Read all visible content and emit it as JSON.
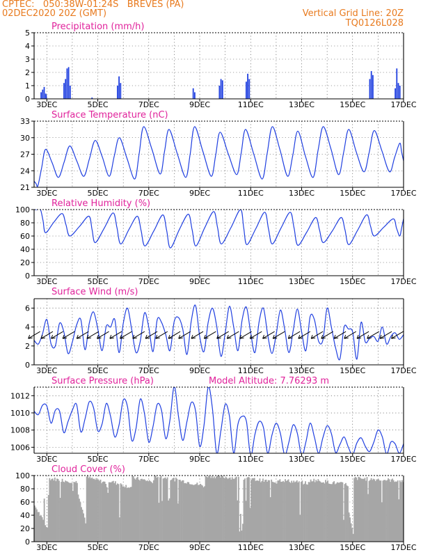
{
  "header": {
    "line1": "CPTEC:   050:38W-01:24S   BREVES (PA)",
    "line2": "02DEC2020 20Z (GMT)",
    "grid_note": "Vertical Grid Line: 20Z",
    "code": "TQ0126L028"
  },
  "colors": {
    "header": "#e87a1e",
    "panel_title": "#e0229b",
    "series": "#1f3fe0",
    "cloud": "#a6a6a6",
    "text": "#000000"
  },
  "x_ticks": [
    "3DEC",
    "5DEC",
    "7DEC",
    "9DEC",
    "11DEC",
    "13DEC",
    "15DEC",
    "17DEC"
  ],
  "chart_data": [
    {
      "type": "bar",
      "title": "Precipitation (mm/h)",
      "x_range_days": [
        2.5,
        17.0
      ],
      "ylim": [
        0,
        5
      ],
      "yticks": [
        0,
        1,
        2,
        3,
        4,
        5
      ],
      "events": [
        {
          "day": 2.75,
          "values": [
            0.5,
            0.7,
            0.9,
            0.4
          ]
        },
        {
          "day": 2.95,
          "values": [
            0.3
          ]
        },
        {
          "day": 3.65,
          "values": [
            1.2,
            1.5,
            2.3,
            2.4,
            1.0
          ]
        },
        {
          "day": 4.75,
          "values": [
            0.1
          ]
        },
        {
          "day": 5.75,
          "values": [
            1.0,
            1.7,
            1.2
          ]
        },
        {
          "day": 8.72,
          "values": [
            0.8,
            0.5
          ]
        },
        {
          "day": 9.75,
          "values": [
            1.0,
            1.5,
            1.4
          ]
        },
        {
          "day": 10.8,
          "values": [
            1.3,
            1.9,
            1.5
          ]
        },
        {
          "day": 15.65,
          "values": [
            1.5,
            2.1,
            1.8
          ]
        },
        {
          "day": 16.65,
          "values": [
            0.8,
            2.3,
            1.2,
            1.0
          ]
        }
      ]
    },
    {
      "type": "line",
      "title": "Surface Temperature (nC)",
      "ylim": [
        21,
        33
      ],
      "yticks": [
        21,
        24,
        27,
        30,
        33
      ],
      "start": 22.1,
      "peaks": [
        {
          "day": 2.95,
          "value": 27.9
        },
        {
          "day": 3.9,
          "value": 28.5
        },
        {
          "day": 4.9,
          "value": 29.5
        },
        {
          "day": 5.85,
          "value": 30.0
        },
        {
          "day": 6.8,
          "value": 32.0
        },
        {
          "day": 7.8,
          "value": 31.5
        },
        {
          "day": 8.8,
          "value": 32.0
        },
        {
          "day": 9.8,
          "value": 31.0
        },
        {
          "day": 10.8,
          "value": 31.5
        },
        {
          "day": 11.85,
          "value": 32.0
        },
        {
          "day": 12.85,
          "value": 31.2
        },
        {
          "day": 13.85,
          "value": 32.0
        },
        {
          "day": 14.85,
          "value": 31.5
        },
        {
          "day": 15.85,
          "value": 31.3
        },
        {
          "day": 16.85,
          "value": 29.0
        }
      ],
      "troughs": [
        {
          "day": 2.65,
          "value": 21.3
        },
        {
          "day": 3.45,
          "value": 22.8
        },
        {
          "day": 4.45,
          "value": 23.0
        },
        {
          "day": 5.45,
          "value": 23.0
        },
        {
          "day": 6.45,
          "value": 22.5
        },
        {
          "day": 7.45,
          "value": 23.4
        },
        {
          "day": 8.45,
          "value": 22.8
        },
        {
          "day": 9.45,
          "value": 23.0
        },
        {
          "day": 10.45,
          "value": 23.3
        },
        {
          "day": 11.45,
          "value": 22.5
        },
        {
          "day": 12.45,
          "value": 23.0
        },
        {
          "day": 13.45,
          "value": 22.8
        },
        {
          "day": 14.45,
          "value": 23.3
        },
        {
          "day": 15.45,
          "value": 23.8
        },
        {
          "day": 16.45,
          "value": 23.8
        }
      ],
      "end": 25.8
    },
    {
      "type": "line",
      "title": "Relative Humidity (%)",
      "ylim": [
        0,
        100
      ],
      "yticks": [
        0,
        20,
        40,
        60,
        80,
        100
      ],
      "start": 100,
      "peaks": [
        {
          "day": 2.75,
          "value": 100
        },
        {
          "day": 3.6,
          "value": 94
        },
        {
          "day": 4.65,
          "value": 90
        },
        {
          "day": 5.6,
          "value": 95
        },
        {
          "day": 6.55,
          "value": 90
        },
        {
          "day": 7.55,
          "value": 92
        },
        {
          "day": 8.55,
          "value": 93
        },
        {
          "day": 9.55,
          "value": 97
        },
        {
          "day": 10.6,
          "value": 100
        },
        {
          "day": 11.55,
          "value": 96
        },
        {
          "day": 12.55,
          "value": 96
        },
        {
          "day": 13.55,
          "value": 88
        },
        {
          "day": 14.55,
          "value": 88
        },
        {
          "day": 15.55,
          "value": 92
        },
        {
          "day": 16.6,
          "value": 86
        }
      ],
      "troughs": [
        {
          "day": 2.95,
          "value": 65
        },
        {
          "day": 3.9,
          "value": 60
        },
        {
          "day": 4.9,
          "value": 50
        },
        {
          "day": 5.9,
          "value": 48
        },
        {
          "day": 6.85,
          "value": 45
        },
        {
          "day": 7.85,
          "value": 42
        },
        {
          "day": 8.85,
          "value": 45
        },
        {
          "day": 9.85,
          "value": 48
        },
        {
          "day": 10.85,
          "value": 47
        },
        {
          "day": 11.85,
          "value": 48
        },
        {
          "day": 12.85,
          "value": 46
        },
        {
          "day": 13.85,
          "value": 50
        },
        {
          "day": 14.85,
          "value": 47
        },
        {
          "day": 15.85,
          "value": 60
        },
        {
          "day": 16.85,
          "value": 60
        }
      ],
      "end": 86
    },
    {
      "type": "line",
      "title": "Surface Wind (m/s)",
      "ylim": [
        0,
        7
      ],
      "yticks": [
        0,
        2,
        4,
        6
      ],
      "values_every_6h": [
        2.6,
        2.2,
        3.3,
        4.8,
        2.2,
        2.0,
        4.4,
        3.5,
        1.2,
        2.4,
        4.2,
        4.8,
        1.6,
        4.4,
        5.6,
        3.8,
        1.5,
        4.1,
        4.0,
        4.8,
        1.3,
        4.4,
        6.0,
        3.7,
        1.3,
        2.5,
        5.5,
        4.0,
        1.4,
        4.8,
        4.5,
        3.2,
        1.5,
        4.6,
        5.0,
        3.8,
        1.1,
        4.6,
        6.3,
        3.0,
        1.4,
        4.5,
        6.0,
        4.1,
        0.9,
        3.4,
        6.2,
        4.0,
        1.5,
        4.8,
        6.1,
        3.4,
        1.3,
        4.6,
        6.0,
        3.2,
        1.2,
        3.2,
        5.8,
        3.8,
        1.3,
        3.6,
        5.9,
        3.5,
        1.5,
        5.1,
        4.8,
        2.5,
        2.6,
        6.0,
        4.0,
        1.8,
        0.6,
        4.0,
        3.8,
        3.5,
        0.6,
        4.5,
        2.4,
        2.8,
        3.0,
        2.5,
        4.0,
        2.2,
        3.0,
        3.4,
        2.7,
        3.2
      ],
      "arrow_days": [
        2.6,
        3.1,
        3.5,
        3.95,
        4.5,
        4.9,
        5.3,
        5.8,
        6.2,
        6.7,
        7.2,
        7.6,
        8.1,
        8.5,
        9.0,
        9.5,
        10.0,
        10.4,
        10.9,
        11.3,
        11.8,
        12.2,
        12.8,
        13.2,
        13.7,
        14.1,
        14.6,
        15.0,
        15.5,
        15.9,
        16.4,
        16.85
      ]
    },
    {
      "type": "line",
      "title": "Surface Pressure (hPa)",
      "annotation": "Model Altitude: 7.76293 m",
      "ylim": [
        1005.3,
        1013.0
      ],
      "yticks": [
        1006,
        1008,
        1010,
        1012
      ],
      "values_every_6h": [
        1010.2,
        1009.8,
        1010.9,
        1010.8,
        1008.8,
        1010.3,
        1010.2,
        1007.7,
        1009.0,
        1010.3,
        1011.0,
        1007.8,
        1009.3,
        1011.3,
        1010.6,
        1007.9,
        1008.7,
        1011.1,
        1009.6,
        1007.2,
        1008.6,
        1011.5,
        1010.7,
        1006.8,
        1008.2,
        1011.6,
        1009.9,
        1006.6,
        1008.4,
        1011.0,
        1010.3,
        1007.0,
        1009.2,
        1013.1,
        1009.6,
        1006.8,
        1009.0,
        1011.2,
        1010.3,
        1006.1,
        1008.5,
        1013.0,
        1010.5,
        1005.3,
        1008.0,
        1011.0,
        1009.6,
        1005.3,
        1008.7,
        1009.6,
        1009.0,
        1005.0,
        1007.5,
        1009.0,
        1008.3,
        1005.3,
        1007.4,
        1008.8,
        1007.6,
        1005.1,
        1006.6,
        1008.6,
        1007.6,
        1005.0,
        1006.6,
        1008.8,
        1007.2,
        1005.3,
        1007.1,
        1008.5,
        1007.6,
        1005.4,
        1006.3,
        1007.2,
        1006.0,
        1005.1,
        1006.5,
        1007.1,
        1006.1,
        1005.5,
        1006.6,
        1008.0,
        1007.2,
        1005.2,
        1006.6,
        1006.4,
        1005.3,
        1006.4
      ]
    },
    {
      "type": "area",
      "title": "Cloud Cover (%)",
      "ylim": [
        0,
        100
      ],
      "yticks": [
        0,
        20,
        40,
        60,
        80,
        100
      ],
      "segments": [
        {
          "from": 2.5,
          "to": 3.0,
          "top": 55,
          "bottom": 20,
          "lo": 60,
          "hi": 92
        },
        {
          "from": 3.0,
          "to": 4.2,
          "top": 96,
          "bottom": 90,
          "lo": 65,
          "hi": 96
        },
        {
          "from": 4.2,
          "to": 4.5,
          "top": 75,
          "bottom": 30,
          "lo": 4,
          "hi": 75
        },
        {
          "from": 4.5,
          "to": 5.4,
          "top": 98,
          "bottom": 88,
          "lo": 68,
          "hi": 98
        },
        {
          "from": 5.4,
          "to": 6.3,
          "top": 92,
          "bottom": 82,
          "lo": 35,
          "hi": 94
        },
        {
          "from": 6.3,
          "to": 7.2,
          "top": 97,
          "bottom": 90,
          "lo": 42,
          "hi": 98
        },
        {
          "from": 7.2,
          "to": 8.3,
          "top": 100,
          "bottom": 92,
          "lo": 50,
          "hi": 100
        },
        {
          "from": 8.3,
          "to": 9.2,
          "top": 92,
          "bottom": 84,
          "lo": 55,
          "hi": 95
        },
        {
          "from": 9.2,
          "to": 10.5,
          "top": 100,
          "bottom": 96,
          "lo": 40,
          "hi": 100
        },
        {
          "from": 10.5,
          "to": 10.7,
          "top": 60,
          "bottom": 20,
          "lo": 10,
          "hi": 70
        },
        {
          "from": 10.7,
          "to": 12.0,
          "top": 96,
          "bottom": 90,
          "lo": 48,
          "hi": 97
        },
        {
          "from": 12.0,
          "to": 13.3,
          "top": 94,
          "bottom": 88,
          "lo": 38,
          "hi": 96
        },
        {
          "from": 13.3,
          "to": 14.8,
          "top": 94,
          "bottom": 86,
          "lo": 20,
          "hi": 96
        },
        {
          "from": 14.8,
          "to": 15.0,
          "top": 50,
          "bottom": 10,
          "lo": 3,
          "hi": 60
        },
        {
          "from": 15.0,
          "to": 17.0,
          "top": 96,
          "bottom": 92,
          "lo": 55,
          "hi": 98
        }
      ]
    }
  ]
}
